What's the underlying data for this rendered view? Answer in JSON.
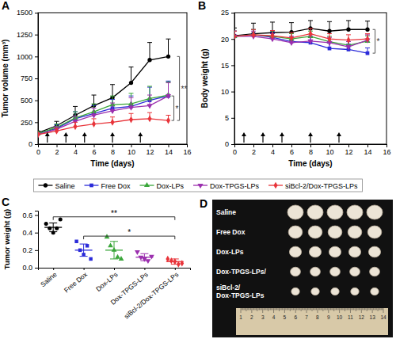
{
  "chart_data": [
    {
      "type": "line",
      "title": "A",
      "x_label": "Time (days)",
      "y_label": "Tumor volume (mm³)",
      "x": [
        0,
        2,
        4,
        6,
        8,
        10,
        12,
        14
      ],
      "xlim": [
        0,
        16
      ],
      "xticks": [
        0,
        2,
        4,
        6,
        8,
        10,
        12,
        14,
        16
      ],
      "ylim": [
        0,
        1500
      ],
      "yticks": [
        0,
        250,
        500,
        750,
        1000,
        1250,
        1500
      ],
      "legend": "bottom",
      "injection_days": [
        1,
        3,
        5,
        8,
        11
      ],
      "series": [
        {
          "name": "Saline",
          "color": "#000000",
          "marker": "circle",
          "values": [
            130,
            210,
            330,
            440,
            530,
            700,
            960,
            1000
          ],
          "errors": [
            20,
            50,
            100,
            120,
            150,
            180,
            200,
            200
          ]
        },
        {
          "name": "Free Dox",
          "color": "#2b2bd9",
          "marker": "square",
          "values": [
            120,
            180,
            290,
            350,
            410,
            430,
            500,
            550
          ],
          "errors": [
            20,
            40,
            80,
            90,
            100,
            120,
            150,
            170
          ]
        },
        {
          "name": "Dox-LPs",
          "color": "#3aa63a",
          "marker": "triangle",
          "values": [
            120,
            190,
            300,
            370,
            450,
            460,
            520,
            560
          ],
          "errors": [
            20,
            40,
            70,
            90,
            100,
            120,
            140,
            150
          ]
        },
        {
          "name": "Dox-TPGS-LPs",
          "color": "#9b2fae",
          "marker": "triangle-down",
          "values": [
            110,
            170,
            260,
            330,
            380,
            420,
            440,
            550
          ],
          "errors": [
            20,
            30,
            60,
            80,
            90,
            110,
            120,
            150
          ]
        },
        {
          "name": "siBcl-2/Dox-TPGS-LPs",
          "color": "#e8343a",
          "marker": "diamond",
          "values": [
            110,
            150,
            200,
            230,
            250,
            280,
            290,
            270
          ],
          "errors": [
            15,
            30,
            50,
            60,
            60,
            70,
            70,
            60
          ]
        }
      ],
      "annotations": [
        {
          "text": "**",
          "x": 15.2,
          "y_from": 270,
          "y_to": 1000
        },
        {
          "text": "*",
          "x": 14.6,
          "y_from": 270,
          "y_to": 550
        }
      ]
    },
    {
      "type": "line",
      "title": "B",
      "x_label": "Time (days)",
      "y_label": "Body weight (g)",
      "x": [
        0,
        2,
        4,
        6,
        8,
        10,
        12,
        14
      ],
      "xlim": [
        0,
        16
      ],
      "xticks": [
        0,
        2,
        4,
        6,
        8,
        10,
        12,
        14,
        16
      ],
      "ylim": [
        0,
        25
      ],
      "yticks": [
        0,
        5,
        10,
        15,
        20,
        25
      ],
      "injection_days": [
        1,
        3,
        5,
        8,
        11
      ],
      "series": [
        {
          "color": "#000000",
          "marker": "circle",
          "values": [
            20.6,
            21,
            21.2,
            21.3,
            22,
            21.5,
            21.8,
            21.8
          ],
          "errors": [
            1.5,
            2,
            2,
            1.8,
            1.5,
            1.8,
            1.7,
            1.6
          ]
        },
        {
          "color": "#2b2bd9",
          "marker": "square",
          "values": [
            20.5,
            20.8,
            20.3,
            19.5,
            19.3,
            18.2,
            18,
            17.3
          ],
          "errors": [
            1,
            1,
            1,
            1,
            1,
            1,
            1,
            1
          ]
        },
        {
          "color": "#3aa63a",
          "marker": "triangle",
          "values": [
            20.5,
            20.8,
            20.5,
            20,
            20.5,
            19.5,
            18.8,
            19.6
          ],
          "errors": [
            1,
            1,
            1,
            1,
            1,
            1,
            1,
            1
          ]
        },
        {
          "color": "#9b2fae",
          "marker": "triangle-down",
          "values": [
            20.5,
            20.5,
            20,
            19.3,
            19.6,
            19.3,
            18.5,
            19.8
          ],
          "errors": [
            1,
            1,
            1,
            1,
            1,
            1,
            1,
            1
          ]
        },
        {
          "color": "#e8343a",
          "marker": "diamond",
          "values": [
            20.5,
            20.8,
            20.6,
            20.2,
            21,
            20,
            19.8,
            20
          ],
          "errors": [
            1,
            1,
            1,
            1,
            1,
            1,
            1,
            1
          ]
        }
      ],
      "annotations": [
        {
          "text": "*",
          "x": 14.8,
          "y_from": 17.3,
          "y_to": 21.8
        }
      ]
    },
    {
      "type": "scatter",
      "title": "C",
      "y_label": "Tumor weight (g)",
      "categories": [
        "Saline",
        "Free Dox",
        "Dox-LPs",
        "Dox-TPGS-LPs",
        "siBcl-2/Dox-TPGS-LPs"
      ],
      "ylim": [
        0,
        0.65
      ],
      "yticks": [
        {
          "value": 0,
          "label": "0.0"
        },
        {
          "value": 0.2,
          "label": "0.2"
        },
        {
          "value": 0.4,
          "label": "0.4"
        },
        {
          "value": 0.6,
          "label": "0.6"
        }
      ],
      "series": [
        {
          "color": "#000000",
          "marker": "circle",
          "values": [
            0.5,
            0.45,
            0.4,
            0.45,
            0.55
          ],
          "mean": 0.46,
          "sd": 0.05
        },
        {
          "color": "#2b2bd9",
          "marker": "square",
          "values": [
            0.3,
            0.2,
            0.15,
            0.25,
            0.1
          ],
          "mean": 0.2,
          "sd": 0.07
        },
        {
          "color": "#3aa63a",
          "marker": "triangle",
          "values": [
            0.35,
            0.25,
            0.2,
            0.12,
            0.1
          ],
          "mean": 0.2,
          "sd": 0.1
        },
        {
          "color": "#9b2fae",
          "marker": "triangle-down",
          "values": [
            0.18,
            0.12,
            0.1,
            0.08,
            0.13
          ],
          "mean": 0.12,
          "sd": 0.04
        },
        {
          "color": "#e8343a",
          "marker": "diamond",
          "values": [
            0.1,
            0.08,
            0.07,
            0.04,
            0.05
          ],
          "mean": 0.07,
          "sd": 0.03
        }
      ],
      "annotations": [
        {
          "text": "**",
          "from": 0,
          "to": 4,
          "y": 0.58
        },
        {
          "text": "*",
          "from": 1,
          "to": 4,
          "y": 0.36
        }
      ]
    },
    {
      "type": "image",
      "title": "D",
      "row_labels": [
        [
          "Saline"
        ],
        [
          "Free Dox"
        ],
        [
          "Dox-LPs"
        ],
        [
          "Dox-TPGS-LPs/"
        ],
        [
          "siBcl-2/",
          "Dox-TPGS-LPs"
        ]
      ],
      "ruler_labels": [
        "1",
        "2",
        "3",
        "4",
        "5",
        "6",
        "7",
        "8",
        "9",
        "10",
        "11",
        "12",
        "13",
        "14"
      ]
    }
  ]
}
